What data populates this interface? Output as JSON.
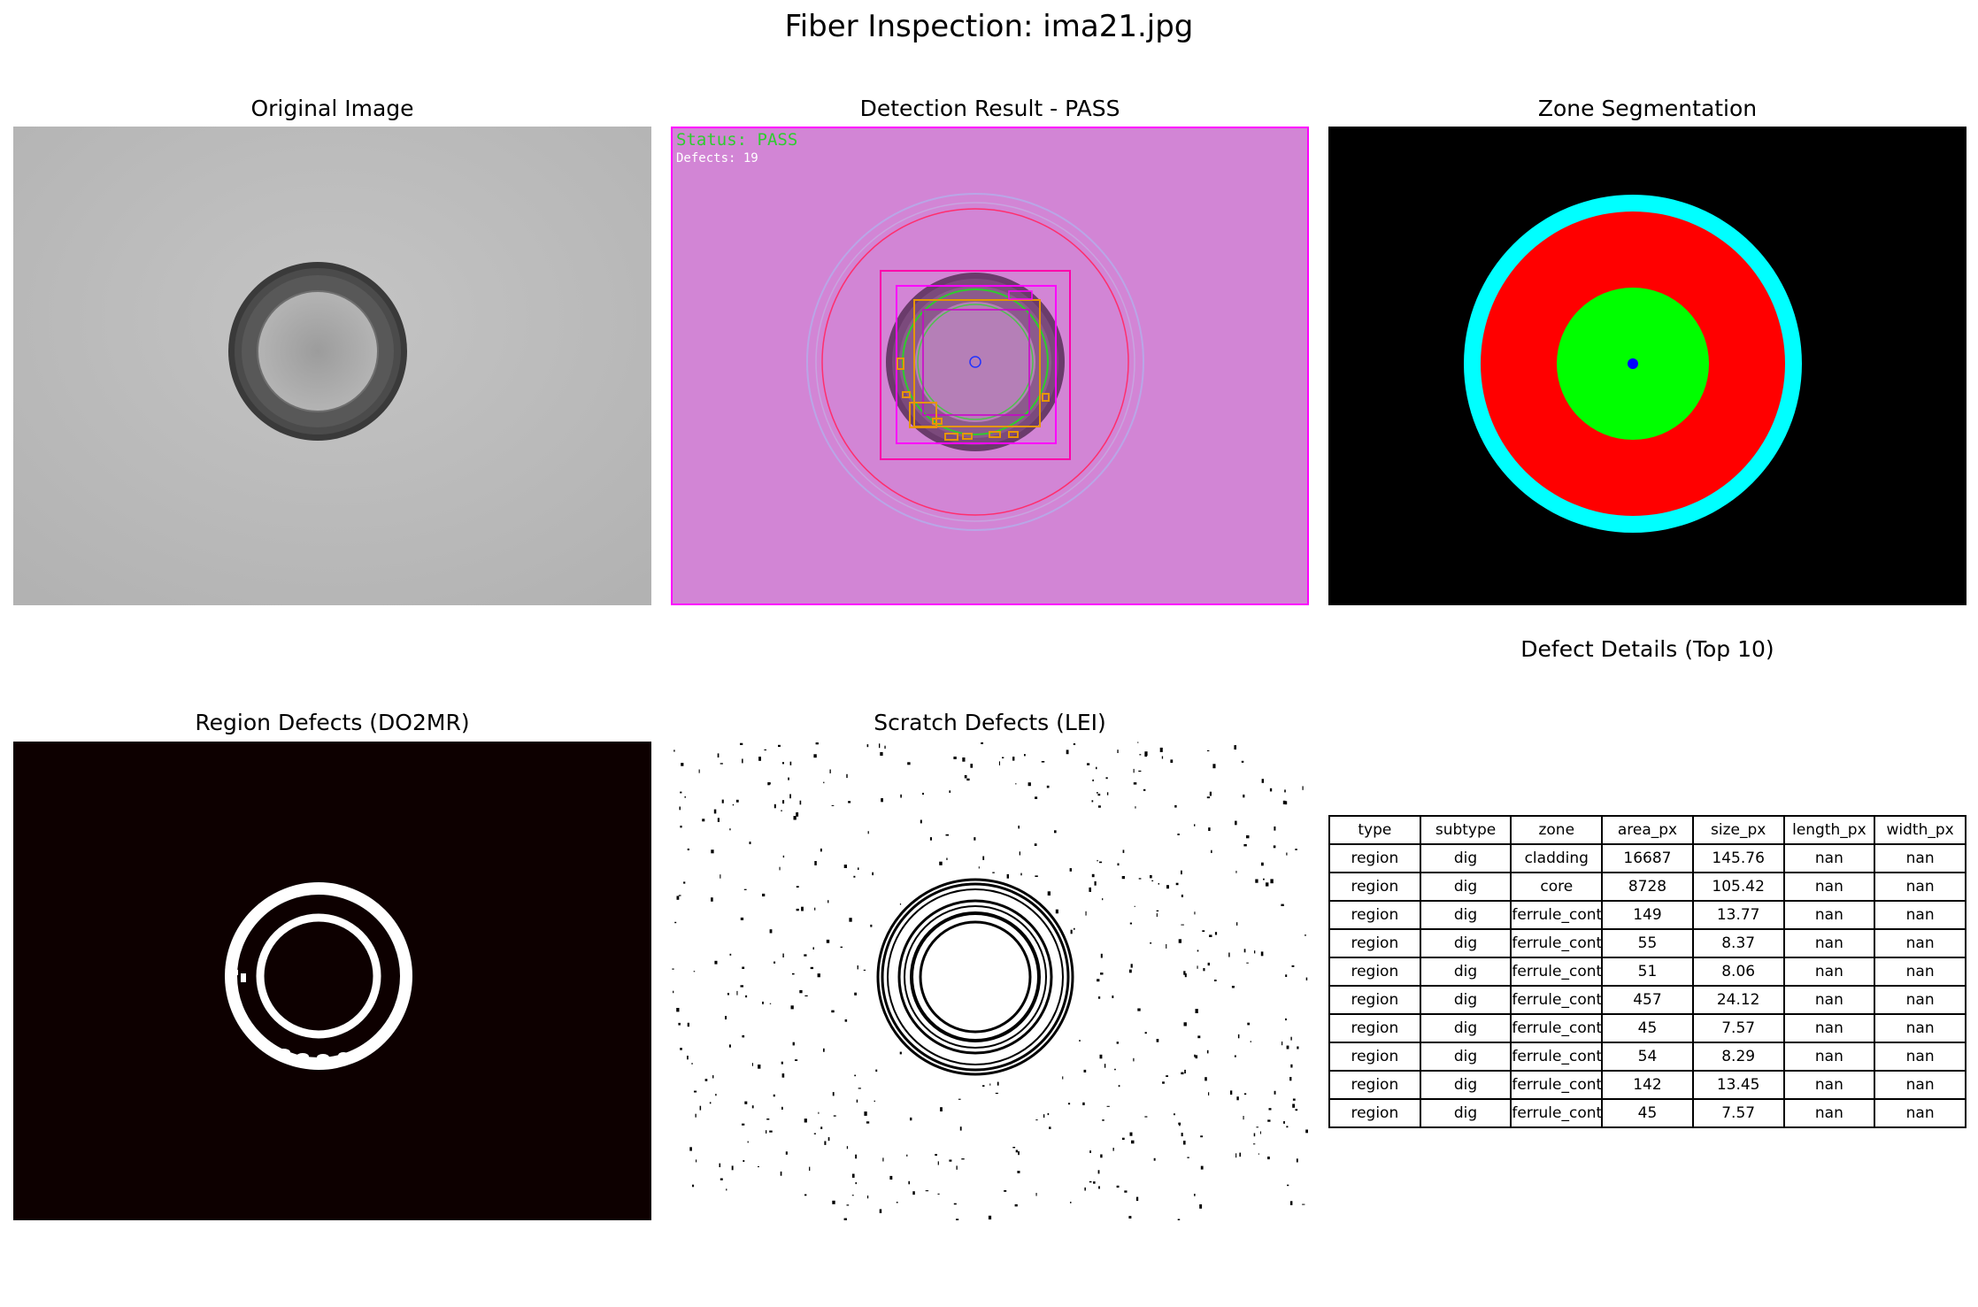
{
  "figure": {
    "title": "Fiber Inspection: ima21.jpg"
  },
  "panels": {
    "original": {
      "title": "Original Image"
    },
    "detection": {
      "title": "Detection Result - PASS",
      "status_text": "Status: PASS",
      "defects_text": "Defects: 19"
    },
    "zones": {
      "title": "Zone Segmentation"
    },
    "region": {
      "title": "Region Defects (DO2MR)"
    },
    "scratch": {
      "title": "Scratch Defects (LEI)"
    },
    "table": {
      "title": "Defect Details (Top 10)"
    }
  },
  "colors": {
    "detection_bg": "#d285d5",
    "status_text": "#2ecc2e",
    "zone_core": "#00ff00",
    "zone_cladding": "#ff0000",
    "zone_ferrule": "#00ffff",
    "zone_center": "#0000ff",
    "region_bg": "#0d0000"
  },
  "defect_table": {
    "columns": [
      "type",
      "subtype",
      "zone",
      "area_px",
      "size_px",
      "length_px",
      "width_px"
    ],
    "rows": [
      [
        "region",
        "dig",
        "cladding",
        "16687",
        "145.76",
        "nan",
        "nan"
      ],
      [
        "region",
        "dig",
        "core",
        "8728",
        "105.42",
        "nan",
        "nan"
      ],
      [
        "region",
        "dig",
        "ferrule_contact",
        "149",
        "13.77",
        "nan",
        "nan"
      ],
      [
        "region",
        "dig",
        "ferrule_contact",
        "55",
        "8.37",
        "nan",
        "nan"
      ],
      [
        "region",
        "dig",
        "ferrule_contact",
        "51",
        "8.06",
        "nan",
        "nan"
      ],
      [
        "region",
        "dig",
        "ferrule_contact",
        "457",
        "24.12",
        "nan",
        "nan"
      ],
      [
        "region",
        "dig",
        "ferrule_contact",
        "45",
        "7.57",
        "nan",
        "nan"
      ],
      [
        "region",
        "dig",
        "ferrule_contact",
        "54",
        "8.29",
        "nan",
        "nan"
      ],
      [
        "region",
        "dig",
        "ferrule_contact",
        "142",
        "13.45",
        "nan",
        "nan"
      ],
      [
        "region",
        "dig",
        "ferrule_contact",
        "45",
        "7.57",
        "nan",
        "nan"
      ]
    ]
  }
}
